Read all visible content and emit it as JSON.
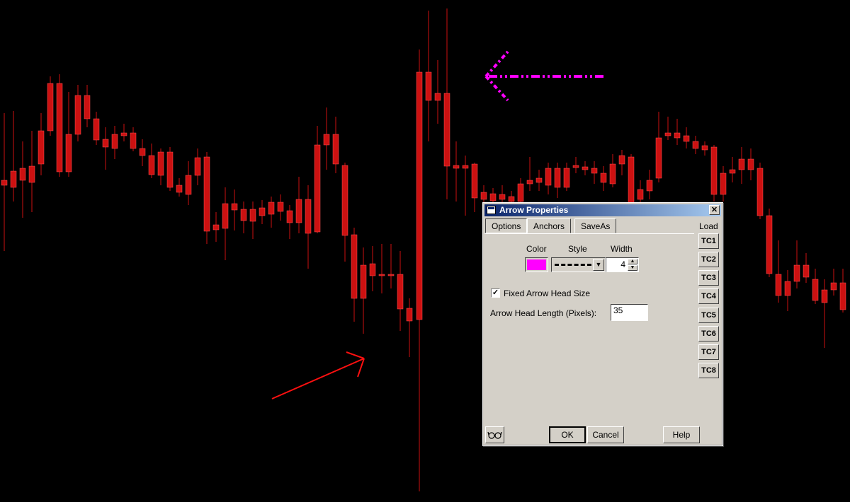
{
  "colors": {
    "background": "#000000",
    "bull": "#22cc22",
    "bear": "#cc1111",
    "magenta_arrow": "#ff00ff",
    "red_arrow": "#ff1010"
  },
  "dialog": {
    "title": "Arrow Properties",
    "close_icon": "close-icon",
    "tabs": [
      "Options",
      "Anchors",
      "SaveAs"
    ],
    "active_tab": "Options",
    "load_label": "Load",
    "color_label": "Color",
    "style_label": "Style",
    "width_label": "Width",
    "color_value": "#ff00ff",
    "style_value": "dash-dot",
    "width_value": "4",
    "fixed_head_label": "Fixed Arrow Head Size",
    "fixed_head_checked": true,
    "head_length_label": "Arrow Head Length (Pixels):",
    "head_length_value": "35",
    "tc_buttons": [
      "TC1",
      "TC2",
      "TC3",
      "TC4",
      "TC5",
      "TC6",
      "TC7",
      "TC8"
    ],
    "ok_label": "OK",
    "cancel_label": "Cancel",
    "help_label": "Help",
    "glasses_icon": "glasses-icon"
  }
}
